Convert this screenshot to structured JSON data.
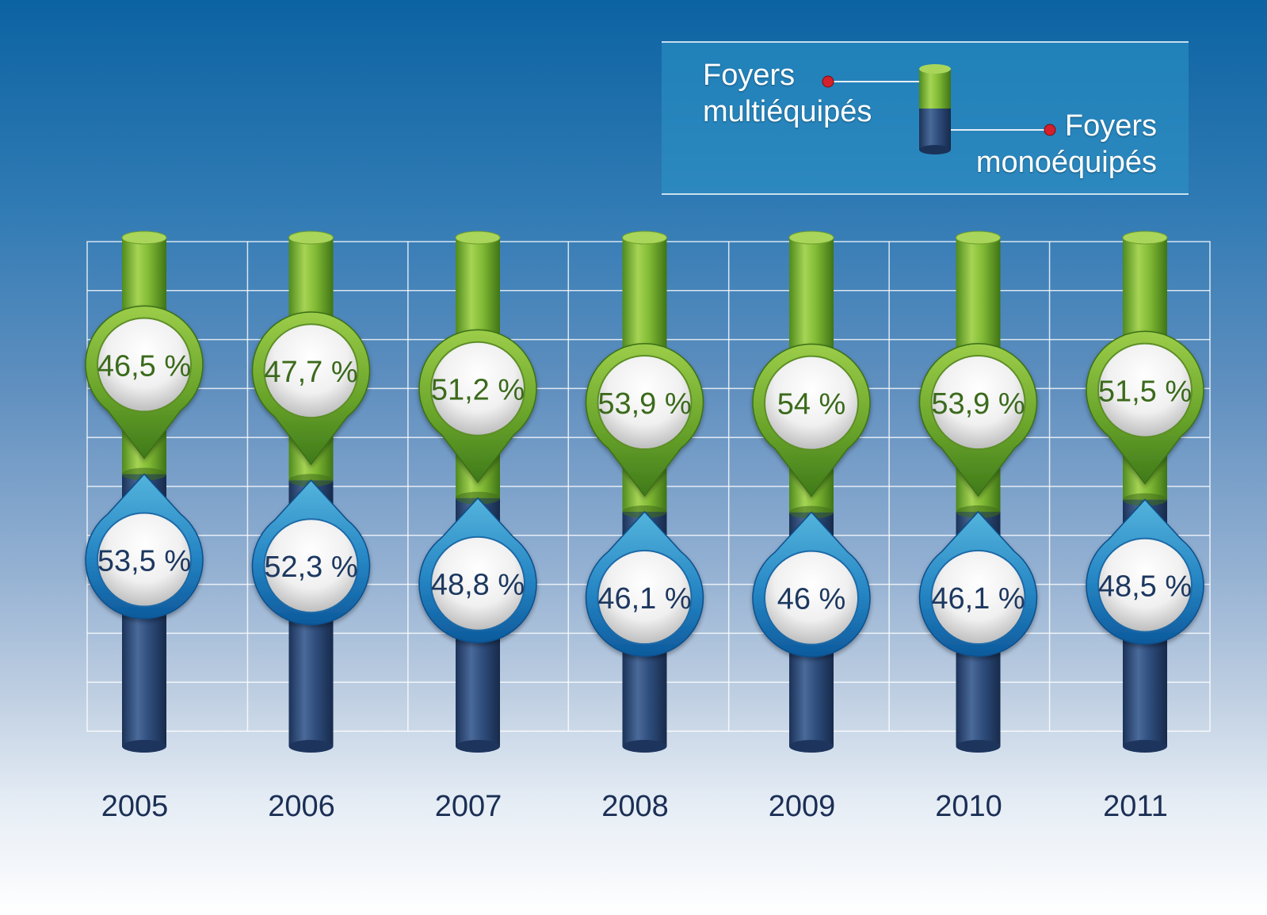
{
  "chart_data": {
    "type": "bar",
    "stacked": true,
    "categories": [
      "2005",
      "2006",
      "2007",
      "2008",
      "2009",
      "2010",
      "2011"
    ],
    "series": [
      {
        "name": "Foyers multiéquipés",
        "color": "#7cb32f",
        "values": [
          46.5,
          47.7,
          51.2,
          53.9,
          54,
          53.9,
          51.5
        ],
        "labels": [
          "46,5 %",
          "47,7 %",
          "51,2 %",
          "53,9 %",
          "54 %",
          "53,9 %",
          "51,5 %"
        ]
      },
      {
        "name": "Foyers monoéquipés",
        "color": "#2b4a78",
        "values": [
          53.5,
          52.3,
          48.8,
          46.1,
          46,
          46.1,
          48.5
        ],
        "labels": [
          "53,5 %",
          "52,3 %",
          "48,8 %",
          "46,1 %",
          "46 %",
          "46,1 %",
          "48,5 %"
        ]
      }
    ],
    "ylim": [
      0,
      100
    ],
    "grid": true,
    "legend_position": "top-right"
  },
  "legend": {
    "multi_line1": "Foyers",
    "multi_line2": "multiéquipés",
    "mono_line1": "Foyers",
    "mono_line2": "monoéquipés"
  }
}
